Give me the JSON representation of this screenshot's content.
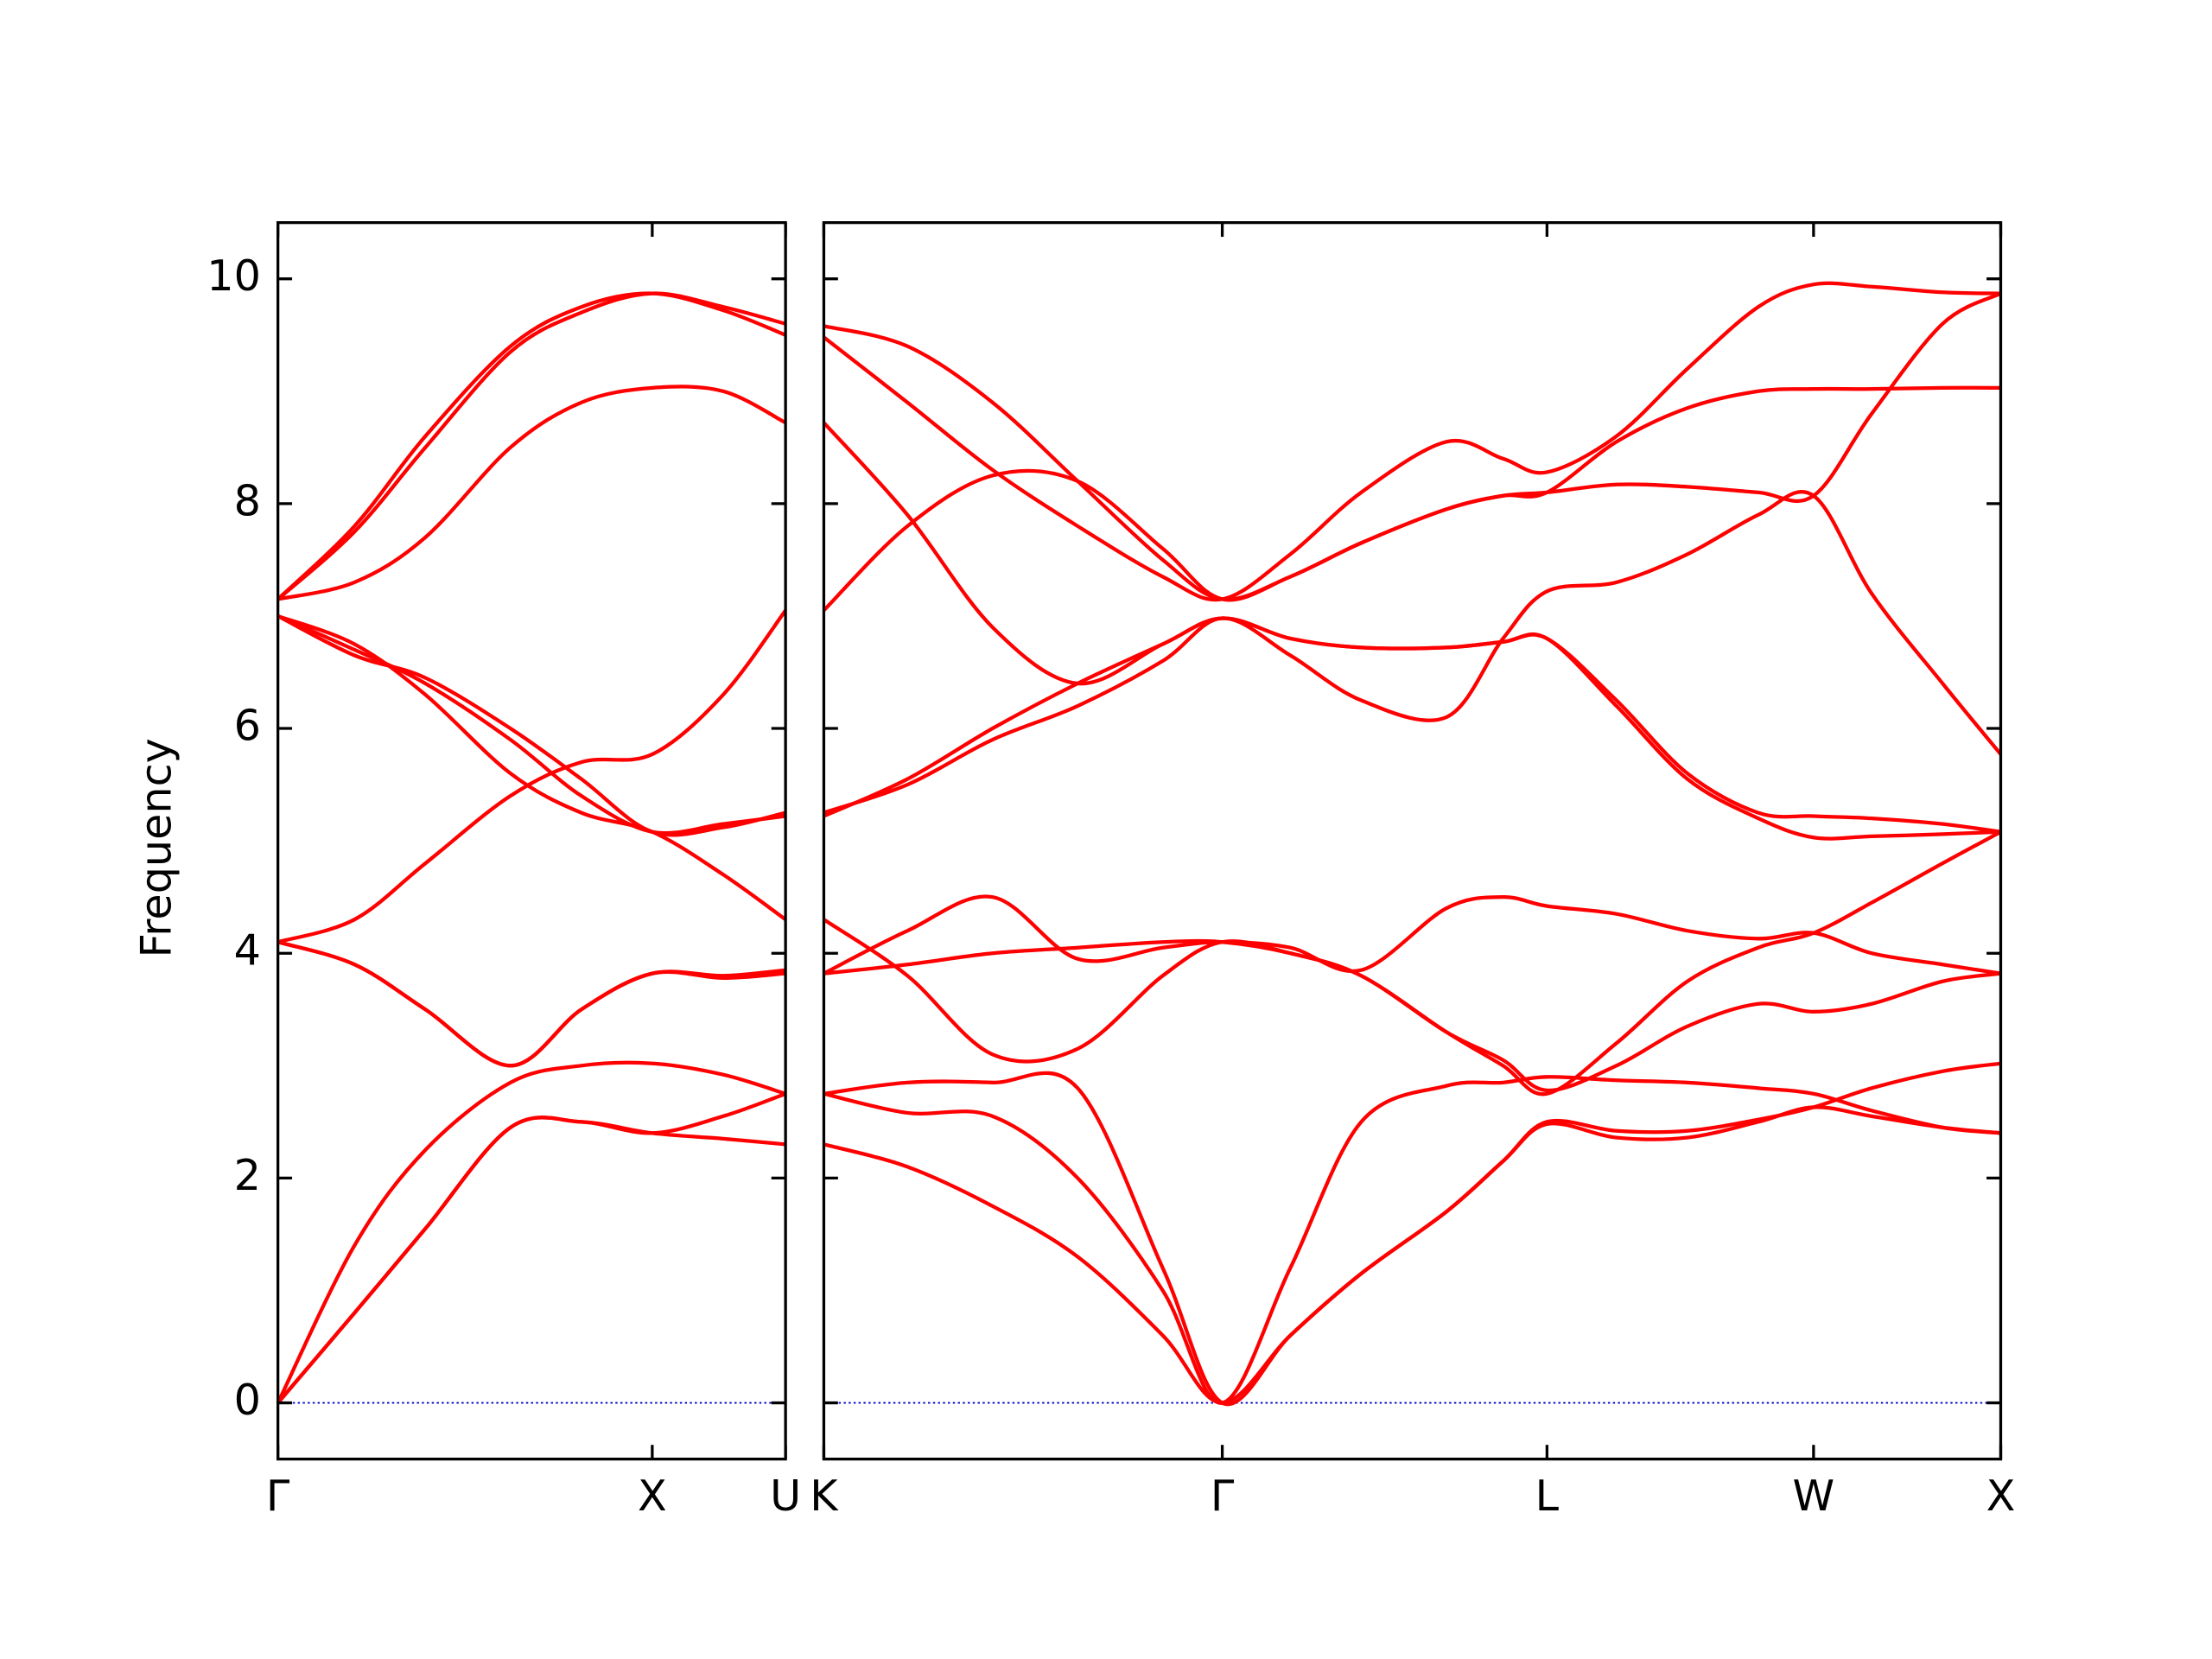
{
  "chart_data": [
    {
      "type": "line",
      "ylabel": "Frequency",
      "color": "#ff0000",
      "zero_line": {
        "y": 0,
        "color": "#0000cc"
      },
      "xlim": [
        0,
        3.58
      ],
      "ylim": [
        -0.5,
        10.5
      ],
      "xticks": [
        {
          "value": 0,
          "label": "Γ"
        },
        {
          "value": 2.64,
          "label": "X"
        },
        {
          "value": 3.58,
          "label": "U"
        }
      ],
      "yticks": [
        0,
        2,
        4,
        6,
        8,
        10
      ],
      "show_ytick_labels": true,
      "x": [
        0,
        0.54,
        1.04,
        1.64,
        2.14,
        2.64,
        3.14,
        3.58
      ],
      "series": [
        {
          "values": [
            0,
            0.8,
            1.55,
            2.45,
            2.5,
            2.4,
            2.35,
            2.3
          ]
        },
        {
          "values": [
            0,
            0.8,
            1.55,
            2.45,
            2.5,
            2.4,
            2.55,
            2.75
          ]
        },
        {
          "values": [
            0,
            1.4,
            2.25,
            2.85,
            3.0,
            3.02,
            2.92,
            2.75
          ]
        },
        {
          "values": [
            4.1,
            3.9,
            3.5,
            3.0,
            3.5,
            3.82,
            3.8,
            3.85
          ]
        },
        {
          "values": [
            4.1,
            3.9,
            3.5,
            3.0,
            3.5,
            3.82,
            3.78,
            3.82
          ]
        },
        {
          "values": [
            4.1,
            4.3,
            4.8,
            5.4,
            5.7,
            5.77,
            6.3,
            7.05
          ]
        },
        {
          "values": [
            7.0,
            6.75,
            6.3,
            5.6,
            5.25,
            5.08,
            4.7,
            4.3
          ]
        },
        {
          "values": [
            7.0,
            6.65,
            6.45,
            6.0,
            5.55,
            5.08,
            5.12,
            5.25
          ]
        },
        {
          "values": [
            7.0,
            6.7,
            6.4,
            5.9,
            5.4,
            5.08,
            5.15,
            5.22
          ]
        },
        {
          "values": [
            7.15,
            7.8,
            8.6,
            9.4,
            9.75,
            9.87,
            9.72,
            9.5
          ]
        },
        {
          "values": [
            7.15,
            7.75,
            8.5,
            9.35,
            9.7,
            9.87,
            9.75,
            9.6
          ]
        },
        {
          "values": [
            7.15,
            7.3,
            7.7,
            8.5,
            8.9,
            9.03,
            9.0,
            8.72
          ]
        }
      ]
    },
    {
      "type": "line",
      "color": "#ff0000",
      "zero_line": {
        "y": 0,
        "color": "#0000cc"
      },
      "xlim": [
        0,
        8.3
      ],
      "ylim": [
        -0.5,
        10.5
      ],
      "xticks": [
        {
          "value": 0,
          "label": "K"
        },
        {
          "value": 2.81,
          "label": "Γ"
        },
        {
          "value": 5.1,
          "label": "L"
        },
        {
          "value": 6.98,
          "label": "W"
        },
        {
          "value": 8.3,
          "label": "X"
        }
      ],
      "yticks": [
        0,
        2,
        4,
        6,
        8,
        10
      ],
      "show_ytick_labels": false,
      "x": [
        0,
        0.59,
        1.19,
        1.79,
        2.39,
        2.81,
        3.29,
        3.79,
        4.39,
        4.79,
        5.1,
        5.59,
        6.09,
        6.59,
        6.98,
        7.39,
        7.89,
        8.3
      ],
      "series": [
        {
          "values": [
            2.3,
            2.1,
            1.75,
            1.3,
            0.6,
            0,
            0.6,
            1.15,
            1.7,
            2.15,
            2.5,
            2.42,
            2.42,
            2.52,
            2.63,
            2.8,
            2.95,
            3.02
          ]
        },
        {
          "values": [
            2.75,
            2.58,
            2.55,
            2.0,
            1.0,
            0,
            1.2,
            2.5,
            2.82,
            2.85,
            2.9,
            2.87,
            2.85,
            2.8,
            2.75,
            2.6,
            2.45,
            2.4
          ]
        },
        {
          "values": [
            2.75,
            2.85,
            2.85,
            2.8,
            1.2,
            0,
            0.6,
            1.15,
            1.7,
            2.15,
            2.48,
            2.36,
            2.36,
            2.5,
            2.63,
            2.55,
            2.45,
            2.4
          ]
        },
        {
          "values": [
            3.82,
            3.9,
            4.0,
            4.05,
            4.1,
            4.1,
            4.0,
            3.8,
            3.3,
            3.0,
            2.75,
            3.2,
            3.75,
            4.05,
            4.18,
            4.45,
            4.8,
            5.08
          ]
        },
        {
          "values": [
            3.82,
            4.2,
            4.5,
            3.95,
            4.05,
            4.1,
            4.05,
            3.85,
            4.4,
            4.5,
            4.42,
            4.35,
            4.2,
            4.13,
            4.18,
            4.0,
            3.9,
            3.82
          ]
        },
        {
          "values": [
            4.3,
            3.8,
            3.1,
            3.15,
            3.8,
            4.1,
            4.0,
            3.8,
            3.3,
            3.05,
            2.78,
            3.0,
            3.35,
            3.55,
            3.48,
            3.55,
            3.75,
            3.82
          ]
        },
        {
          "values": [
            5.22,
            5.55,
            6.0,
            6.4,
            6.75,
            6.98,
            6.8,
            6.72,
            6.72,
            6.77,
            6.8,
            6.2,
            5.55,
            5.2,
            5.03,
            5.04,
            5.06,
            5.08
          ]
        },
        {
          "values": [
            5.25,
            5.5,
            5.9,
            6.2,
            6.6,
            6.98,
            6.65,
            6.25,
            6.1,
            6.8,
            7.22,
            7.3,
            7.55,
            7.9,
            8.07,
            7.2,
            6.4,
            5.77
          ]
        },
        {
          "values": [
            8.72,
            7.9,
            6.9,
            6.4,
            6.75,
            6.98,
            6.8,
            6.72,
            6.72,
            6.77,
            6.8,
            6.25,
            5.6,
            5.25,
            5.22,
            5.2,
            5.15,
            5.08
          ]
        },
        {
          "values": [
            7.05,
            7.8,
            8.25,
            8.2,
            7.6,
            7.15,
            7.35,
            7.65,
            7.95,
            8.07,
            8.1,
            8.17,
            8.15,
            8.1,
            8.07,
            8.8,
            9.6,
            9.87
          ]
        },
        {
          "values": [
            9.48,
            8.9,
            8.3,
            7.8,
            7.35,
            7.15,
            7.55,
            8.1,
            8.55,
            8.4,
            8.28,
            8.6,
            9.2,
            9.75,
            9.95,
            9.93,
            9.88,
            9.87
          ]
        },
        {
          "values": [
            9.58,
            9.4,
            8.9,
            8.2,
            7.5,
            7.15,
            7.35,
            7.65,
            7.95,
            8.07,
            8.1,
            8.55,
            8.85,
            9.0,
            9.02,
            9.02,
            9.03,
            9.03
          ]
        }
      ]
    }
  ]
}
